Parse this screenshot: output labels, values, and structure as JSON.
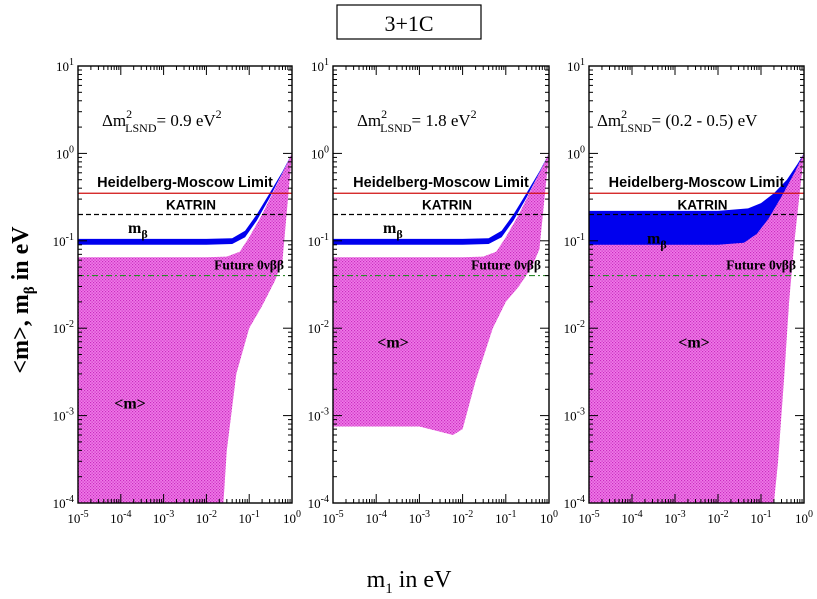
{
  "figure_title": "3+1C",
  "xlabel": "m",
  "xlabel_sub": "1",
  "xlabel_rest": " in eV",
  "ylabel_html": "<m>, m",
  "ylabel_sub": "β",
  "ylabel_rest": " in eV",
  "colors": {
    "m_band": "#e23fd6",
    "mbeta_band": "#0000ee",
    "heidelberg": "#d01010",
    "katrin": "#000000",
    "future": "#2a8a2a"
  },
  "chart_data": [
    {
      "type": "area",
      "panel": "left",
      "delta_label": "Δm",
      "delta_sup": "2",
      "delta_sub": "LSND",
      "delta_value": "= 0.9 eV",
      "delta_value_sup": "2",
      "xscale": "log",
      "yscale": "log",
      "xlim": [
        1e-05,
        1
      ],
      "ylim": [
        0.0001,
        10
      ],
      "x_ticks": [
        "10^-5",
        "10^-4",
        "10^-3",
        "10^-2",
        "10^-1",
        "10^0"
      ],
      "y_ticks": [
        "10^-4",
        "10^-3",
        "10^-2",
        "10^-1",
        "10^0",
        "10^1"
      ],
      "lines": {
        "heidelberg": {
          "label": "Heidelberg-Moscow Limit",
          "y": 0.35
        },
        "katrin": {
          "label": "KATRIN",
          "y": 0.2
        },
        "future": {
          "label": "Future 0νββ",
          "y": 0.04
        }
      },
      "band_labels": {
        "m": "<m>",
        "mbeta": "m",
        "mbeta_sub": "β"
      },
      "m_band": {
        "upper": [
          [
            1e-05,
            0.065
          ],
          [
            0.001,
            0.065
          ],
          [
            0.01,
            0.065
          ],
          [
            0.03,
            0.066
          ],
          [
            0.06,
            0.075
          ],
          [
            0.1,
            0.11
          ],
          [
            0.2,
            0.2
          ],
          [
            0.4,
            0.4
          ],
          [
            1,
            1.0
          ]
        ],
        "lower": [
          [
            1e-05,
            0.0001
          ],
          [
            0.025,
            0.0001
          ],
          [
            0.03,
            0.0004
          ],
          [
            0.05,
            0.003
          ],
          [
            0.1,
            0.01
          ],
          [
            0.2,
            0.018
          ],
          [
            0.4,
            0.035
          ],
          [
            0.6,
            0.06
          ],
          [
            1,
            1.0
          ]
        ]
      },
      "mbeta_band": {
        "upper": [
          [
            1e-05,
            0.105
          ],
          [
            0.01,
            0.105
          ],
          [
            0.04,
            0.107
          ],
          [
            0.08,
            0.13
          ],
          [
            0.15,
            0.2
          ],
          [
            0.3,
            0.35
          ],
          [
            0.6,
            0.62
          ],
          [
            1,
            1.0
          ]
        ],
        "lower": [
          [
            1e-05,
            0.09
          ],
          [
            0.01,
            0.09
          ],
          [
            0.04,
            0.092
          ],
          [
            0.08,
            0.11
          ],
          [
            0.15,
            0.17
          ],
          [
            0.3,
            0.31
          ],
          [
            0.6,
            0.6
          ],
          [
            1,
            1.0
          ]
        ]
      }
    },
    {
      "type": "area",
      "panel": "middle",
      "delta_label": "Δm",
      "delta_sup": "2",
      "delta_sub": "LSND",
      "delta_value": "= 1.8 eV",
      "delta_value_sup": "2",
      "xscale": "log",
      "yscale": "log",
      "xlim": [
        1e-05,
        1
      ],
      "ylim": [
        0.0001,
        10
      ],
      "x_ticks": [
        "10^-5",
        "10^-4",
        "10^-3",
        "10^-2",
        "10^-1",
        "10^0"
      ],
      "y_ticks": [
        "10^-4",
        "10^-3",
        "10^-2",
        "10^-1",
        "10^0",
        "10^1"
      ],
      "lines": {
        "heidelberg": {
          "label": "Heidelberg-Moscow Limit",
          "y": 0.35
        },
        "katrin": {
          "label": "KATRIN",
          "y": 0.2
        },
        "future": {
          "label": "Future 0νββ",
          "y": 0.04
        }
      },
      "band_labels": {
        "m": "<m>",
        "mbeta": "m",
        "mbeta_sub": "β"
      },
      "m_band": {
        "upper": [
          [
            1e-05,
            0.065
          ],
          [
            0.001,
            0.065
          ],
          [
            0.01,
            0.065
          ],
          [
            0.03,
            0.066
          ],
          [
            0.06,
            0.075
          ],
          [
            0.1,
            0.11
          ],
          [
            0.2,
            0.2
          ],
          [
            0.4,
            0.4
          ],
          [
            1,
            1.0
          ]
        ],
        "lower": [
          [
            1e-05,
            0.00075
          ],
          [
            0.001,
            0.00075
          ],
          [
            0.006,
            0.0006
          ],
          [
            0.01,
            0.0007
          ],
          [
            0.02,
            0.0025
          ],
          [
            0.05,
            0.01
          ],
          [
            0.1,
            0.02
          ],
          [
            0.2,
            0.03
          ],
          [
            0.4,
            0.05
          ],
          [
            0.6,
            0.08
          ],
          [
            1,
            1.0
          ]
        ]
      },
      "mbeta_band": {
        "upper": [
          [
            1e-05,
            0.105
          ],
          [
            0.01,
            0.105
          ],
          [
            0.04,
            0.107
          ],
          [
            0.08,
            0.13
          ],
          [
            0.15,
            0.2
          ],
          [
            0.3,
            0.35
          ],
          [
            0.6,
            0.62
          ],
          [
            1,
            1.0
          ]
        ],
        "lower": [
          [
            1e-05,
            0.09
          ],
          [
            0.01,
            0.09
          ],
          [
            0.04,
            0.092
          ],
          [
            0.08,
            0.11
          ],
          [
            0.15,
            0.17
          ],
          [
            0.3,
            0.31
          ],
          [
            0.6,
            0.6
          ],
          [
            1,
            1.0
          ]
        ]
      }
    },
    {
      "type": "area",
      "panel": "right",
      "delta_label": "Δm",
      "delta_sup": "2",
      "delta_sub": "LSND",
      "delta_value": "= (0.2 - 0.5) eV",
      "delta_value_sup": "",
      "xscale": "log",
      "yscale": "log",
      "xlim": [
        1e-05,
        1
      ],
      "ylim": [
        0.0001,
        10
      ],
      "x_ticks": [
        "10^-5",
        "10^-4",
        "10^-3",
        "10^-2",
        "10^-1",
        "10^0"
      ],
      "y_ticks": [
        "10^-4",
        "10^-3",
        "10^-2",
        "10^-1",
        "10^0",
        "10^1"
      ],
      "lines": {
        "heidelberg": {
          "label": "Heidelberg-Moscow Limit",
          "y": 0.35
        },
        "katrin": {
          "label": "KATRIN",
          "y": 0.2
        },
        "future": {
          "label": "Future 0νββ",
          "y": 0.04
        }
      },
      "band_labels": {
        "m": "<m>",
        "mbeta": "m",
        "mbeta_sub": "β"
      },
      "m_band": {
        "upper": [
          [
            1e-05,
            0.18
          ],
          [
            0.01,
            0.18
          ],
          [
            0.05,
            0.19
          ],
          [
            0.1,
            0.22
          ],
          [
            0.2,
            0.28
          ],
          [
            0.4,
            0.45
          ],
          [
            1,
            1.0
          ]
        ],
        "lower": [
          [
            1e-05,
            0.0001
          ],
          [
            0.2,
            0.0001
          ],
          [
            0.25,
            0.0003
          ],
          [
            0.35,
            0.003
          ],
          [
            0.45,
            0.02
          ],
          [
            0.6,
            0.1
          ],
          [
            1,
            1.0
          ]
        ]
      },
      "mbeta_band": {
        "upper": [
          [
            1e-05,
            0.22
          ],
          [
            0.01,
            0.22
          ],
          [
            0.05,
            0.235
          ],
          [
            0.1,
            0.27
          ],
          [
            0.2,
            0.35
          ],
          [
            0.4,
            0.5
          ],
          [
            0.7,
            0.75
          ],
          [
            1,
            1.0
          ]
        ],
        "lower": [
          [
            1e-05,
            0.09
          ],
          [
            0.01,
            0.09
          ],
          [
            0.04,
            0.095
          ],
          [
            0.08,
            0.12
          ],
          [
            0.15,
            0.18
          ],
          [
            0.3,
            0.32
          ],
          [
            0.6,
            0.6
          ],
          [
            1,
            1.0
          ]
        ]
      }
    }
  ]
}
